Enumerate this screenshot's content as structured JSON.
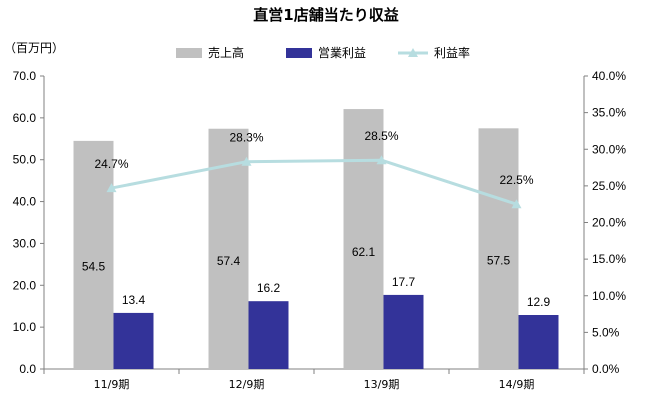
{
  "chart_data": {
    "type": "bar",
    "title": "直営1店舗当たり収益",
    "y_unit": "（百万円）",
    "categories": [
      "11/9期",
      "12/9期",
      "13/9期",
      "14/9期"
    ],
    "series": [
      {
        "name": "売上高",
        "type": "bar",
        "axis": "left",
        "color": "#c0c0c0",
        "values": [
          54.5,
          57.4,
          62.1,
          57.5
        ],
        "labels": [
          "54.5",
          "57.4",
          "62.1",
          "57.5"
        ]
      },
      {
        "name": "営業利益",
        "type": "bar",
        "axis": "left",
        "color": "#333399",
        "values": [
          13.4,
          16.2,
          17.7,
          12.9
        ],
        "labels": [
          "13.4",
          "16.2",
          "17.7",
          "12.9"
        ]
      },
      {
        "name": "利益率",
        "type": "line",
        "axis": "right",
        "color": "#b7dde0",
        "values": [
          24.7,
          28.3,
          28.5,
          22.5
        ],
        "labels": [
          "24.7%",
          "28.3%",
          "28.5%",
          "22.5%"
        ]
      }
    ],
    "ylim_left": [
      0,
      70
    ],
    "yticks_left": [
      "0.0",
      "10.0",
      "20.0",
      "30.0",
      "40.0",
      "50.0",
      "60.0",
      "70.0"
    ],
    "ylim_right": [
      0,
      40
    ],
    "yticks_right": [
      "0.0%",
      "5.0%",
      "10.0%",
      "15.0%",
      "20.0%",
      "25.0%",
      "30.0%",
      "35.0%",
      "40.0%"
    ],
    "grid": false,
    "legend_position": "top"
  }
}
